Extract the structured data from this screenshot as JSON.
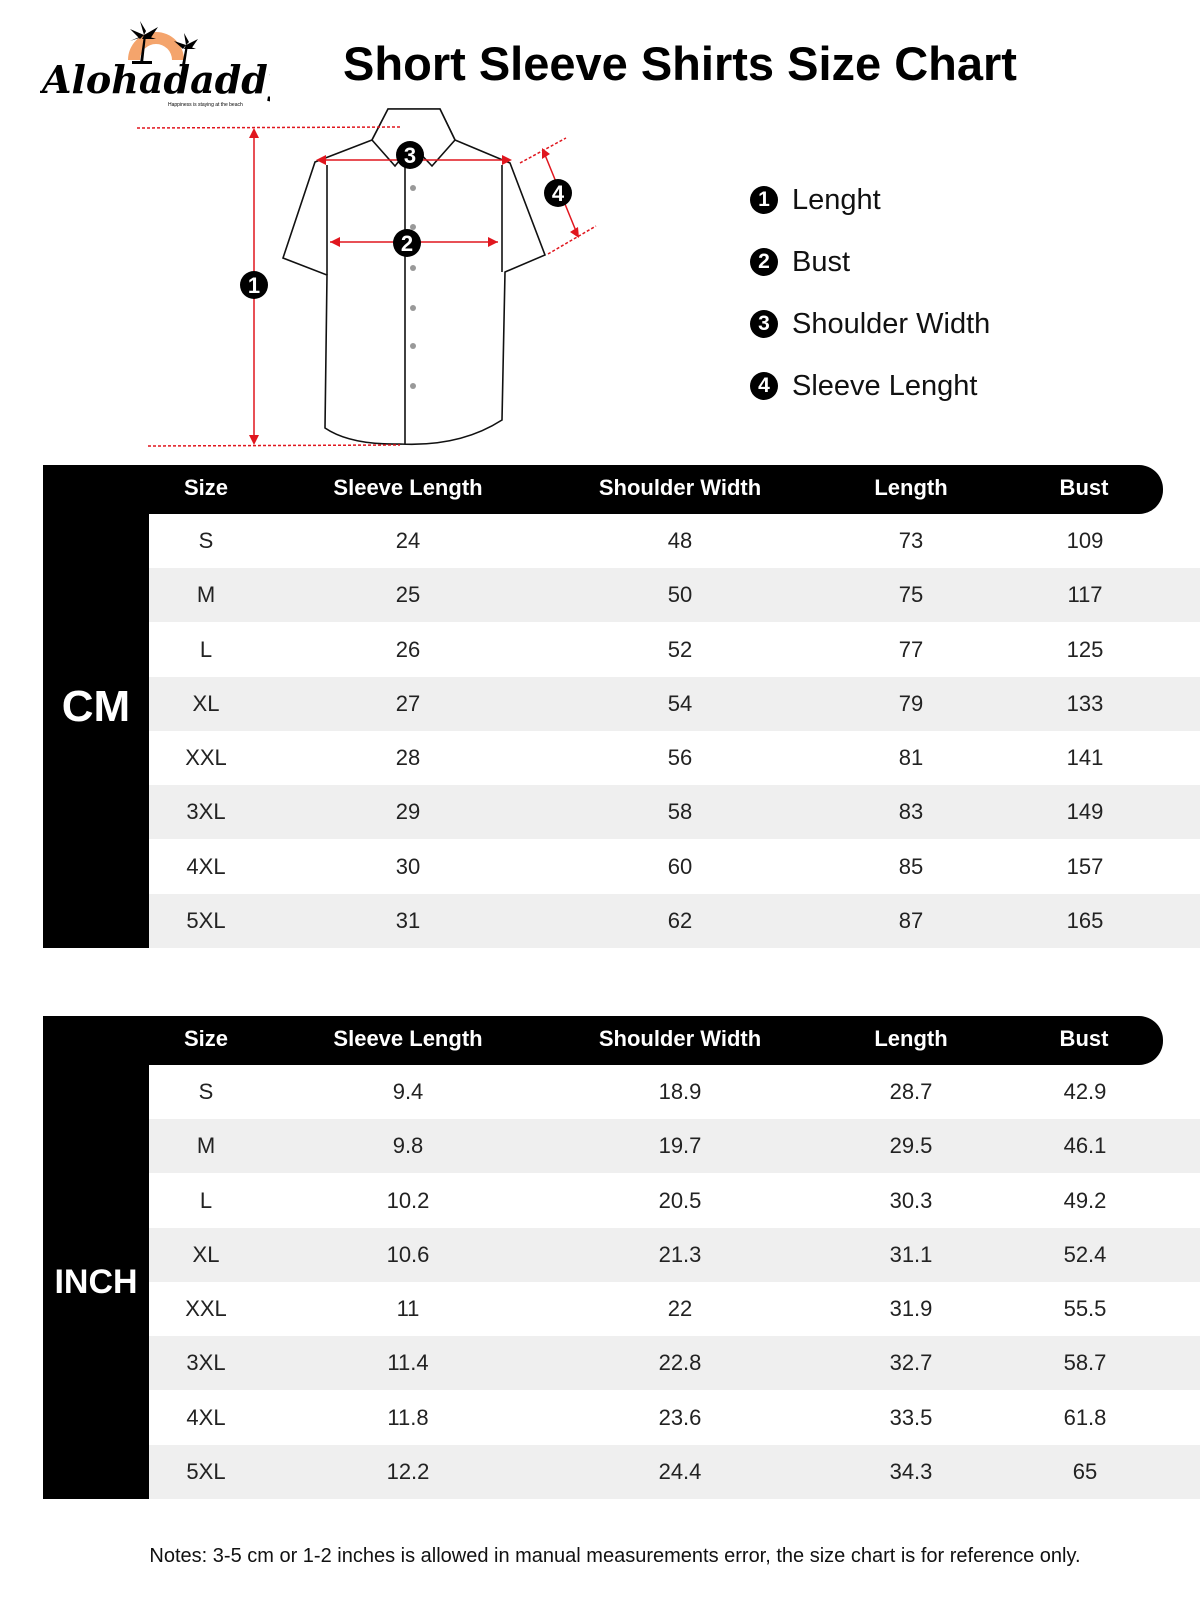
{
  "brand": {
    "name": "Alohadaddy",
    "tagline": "Happiness is staying at the beach",
    "accent": "#f4a46c"
  },
  "title": "Short Sleeve Shirts Size Chart",
  "diagram": {
    "markers": [
      "1",
      "2",
      "3",
      "4"
    ],
    "line_color": "#e0161e"
  },
  "legend": [
    {
      "num": "1",
      "label": "Lenght"
    },
    {
      "num": "2",
      "label": "Bust"
    },
    {
      "num": "3",
      "label": "Shoulder Width"
    },
    {
      "num": "4",
      "label": "Sleeve Lenght"
    }
  ],
  "columns": [
    "Size",
    "Sleeve Length",
    "Shoulder Width",
    "Length",
    "Bust"
  ],
  "tables": [
    {
      "unit": "CM",
      "rows": [
        [
          "S",
          "24",
          "48",
          "73",
          "109"
        ],
        [
          "M",
          "25",
          "50",
          "75",
          "117"
        ],
        [
          "L",
          "26",
          "52",
          "77",
          "125"
        ],
        [
          "XL",
          "27",
          "54",
          "79",
          "133"
        ],
        [
          "XXL",
          "28",
          "56",
          "81",
          "141"
        ],
        [
          "3XL",
          "29",
          "58",
          "83",
          "149"
        ],
        [
          "4XL",
          "30",
          "60",
          "85",
          "157"
        ],
        [
          "5XL",
          "31",
          "62",
          "87",
          "165"
        ]
      ]
    },
    {
      "unit": "INCH",
      "rows": [
        [
          "S",
          "9.4",
          "18.9",
          "28.7",
          "42.9"
        ],
        [
          "M",
          "9.8",
          "19.7",
          "29.5",
          "46.1"
        ],
        [
          "L",
          "10.2",
          "20.5",
          "30.3",
          "49.2"
        ],
        [
          "XL",
          "10.6",
          "21.3",
          "31.1",
          "52.4"
        ],
        [
          "XXL",
          "11",
          "22",
          "31.9",
          "55.5"
        ],
        [
          "3XL",
          "11.4",
          "22.8",
          "32.7",
          "58.7"
        ],
        [
          "4XL",
          "11.8",
          "23.6",
          "33.5",
          "61.8"
        ],
        [
          "5XL",
          "12.2",
          "24.4",
          "34.3",
          "65"
        ]
      ]
    }
  ],
  "notes": "Notes: 3-5 cm or 1-2 inches is allowed in manual measurements error, the size chart is for reference only."
}
